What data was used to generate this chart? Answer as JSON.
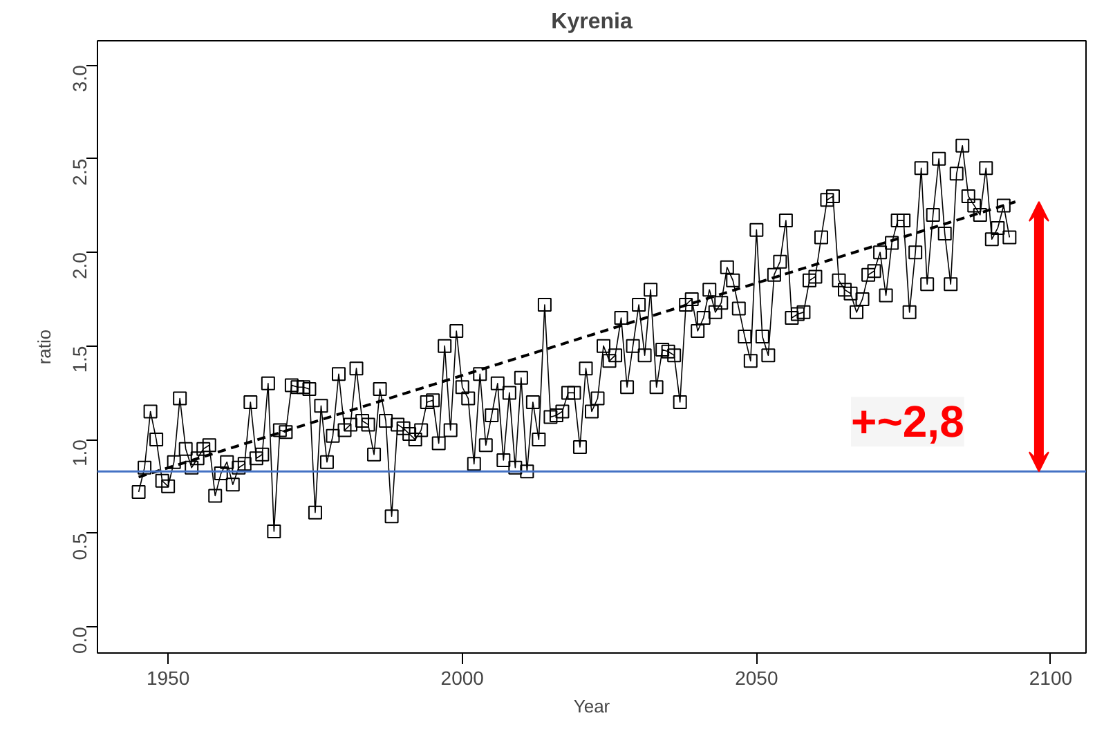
{
  "chart_data": {
    "type": "line",
    "title": "Kyrenia",
    "xlabel": "Year",
    "ylabel": "ratio",
    "xlim": [
      1938,
      2106
    ],
    "ylim": [
      -0.14,
      3.13
    ],
    "xticks": [
      1950,
      2000,
      2050,
      2100
    ],
    "yticks": [
      {
        "value": 0,
        "label": "0.0"
      },
      0.5,
      {
        "value": 1,
        "label": "1.0"
      },
      1.5,
      {
        "value": 2,
        "label": "2.0"
      },
      2.5,
      {
        "value": 3,
        "label": "3.0"
      }
    ],
    "grid": false,
    "series": [
      {
        "marker": "square",
        "line_style": "solid",
        "color": "#000000",
        "x": [
          1945,
          1946,
          1947,
          1948,
          1949,
          1950,
          1951,
          1952,
          1953,
          1954,
          1955,
          1956,
          1957,
          1958,
          1959,
          1960,
          1961,
          1962,
          1963,
          1964,
          1965,
          1966,
          1967,
          1968,
          1969,
          1970,
          1971,
          1972,
          1973,
          1974,
          1975,
          1976,
          1977,
          1978,
          1979,
          1980,
          1981,
          1982,
          1983,
          1984,
          1985,
          1986,
          1987,
          1988,
          1989,
          1990,
          1991,
          1992,
          1993,
          1994,
          1995,
          1996,
          1997,
          1998,
          1999,
          2000,
          2001,
          2002,
          2003,
          2004,
          2005,
          2006,
          2007,
          2008,
          2009,
          2010,
          2011,
          2012,
          2013,
          2014,
          2015,
          2016,
          2017,
          2018,
          2019,
          2020,
          2021,
          2022,
          2023,
          2024,
          2025,
          2026,
          2027,
          2028,
          2029,
          2030,
          2031,
          2032,
          2033,
          2034,
          2035,
          2036,
          2037,
          2038,
          2039,
          2040,
          2041,
          2042,
          2043,
          2044,
          2045,
          2046,
          2047,
          2048,
          2049,
          2050,
          2051,
          2052,
          2053,
          2054,
          2055,
          2056,
          2057,
          2058,
          2059,
          2060,
          2061,
          2062,
          2063,
          2064,
          2065,
          2066,
          2067,
          2068,
          2069,
          2070,
          2071,
          2072,
          2073,
          2074,
          2075,
          2076,
          2077,
          2078,
          2079,
          2080,
          2081,
          2082,
          2083,
          2084,
          2085,
          2086,
          2087,
          2088,
          2089,
          2090,
          2091,
          2092,
          2093
        ],
        "values": [
          0.72,
          0.85,
          1.15,
          1.0,
          0.78,
          0.75,
          0.88,
          1.22,
          0.95,
          0.85,
          0.9,
          0.95,
          0.97,
          0.7,
          0.82,
          0.88,
          0.76,
          0.85,
          0.87,
          1.2,
          0.9,
          0.92,
          1.3,
          0.51,
          1.05,
          1.04,
          1.29,
          1.28,
          1.28,
          1.27,
          0.61,
          1.18,
          0.88,
          1.02,
          1.35,
          1.05,
          1.08,
          1.38,
          1.1,
          1.08,
          0.92,
          1.27,
          1.1,
          0.59,
          1.08,
          1.06,
          1.03,
          1.0,
          1.05,
          1.2,
          1.21,
          0.98,
          1.5,
          1.05,
          1.58,
          1.28,
          1.22,
          0.87,
          1.35,
          0.97,
          1.13,
          1.3,
          0.89,
          1.25,
          0.85,
          1.33,
          0.83,
          1.2,
          1.0,
          1.72,
          1.12,
          1.13,
          1.15,
          1.25,
          1.25,
          0.96,
          1.38,
          1.15,
          1.22,
          1.5,
          1.42,
          1.45,
          1.65,
          1.28,
          1.5,
          1.72,
          1.45,
          1.8,
          1.28,
          1.48,
          1.47,
          1.45,
          1.2,
          1.72,
          1.75,
          1.58,
          1.65,
          1.8,
          1.68,
          1.73,
          1.92,
          1.85,
          1.7,
          1.55,
          1.42,
          2.12,
          1.55,
          1.45,
          1.88,
          1.95,
          2.17,
          1.65,
          1.67,
          1.68,
          1.85,
          1.87,
          2.08,
          2.28,
          2.3,
          1.85,
          1.8,
          1.78,
          1.68,
          1.75,
          1.88,
          1.9,
          2.0,
          1.77,
          2.05,
          2.17,
          2.17,
          1.68,
          2.0,
          2.45,
          1.83,
          2.2,
          2.5,
          2.1,
          1.83,
          2.42,
          2.57,
          2.3,
          2.25,
          2.2,
          2.45,
          2.07,
          2.13,
          2.25,
          2.08
        ]
      },
      {
        "type": "line",
        "marker": "none",
        "line_style": "dashed",
        "color": "#000000",
        "x": [
          1945,
          2094
        ],
        "values": [
          0.8,
          2.27
        ]
      }
    ],
    "ref_lines": [
      {
        "axis": "y",
        "value": 0.83,
        "color": "#4472c4",
        "line_style": "solid"
      }
    ],
    "annotations": [
      "+~2,8"
    ]
  }
}
